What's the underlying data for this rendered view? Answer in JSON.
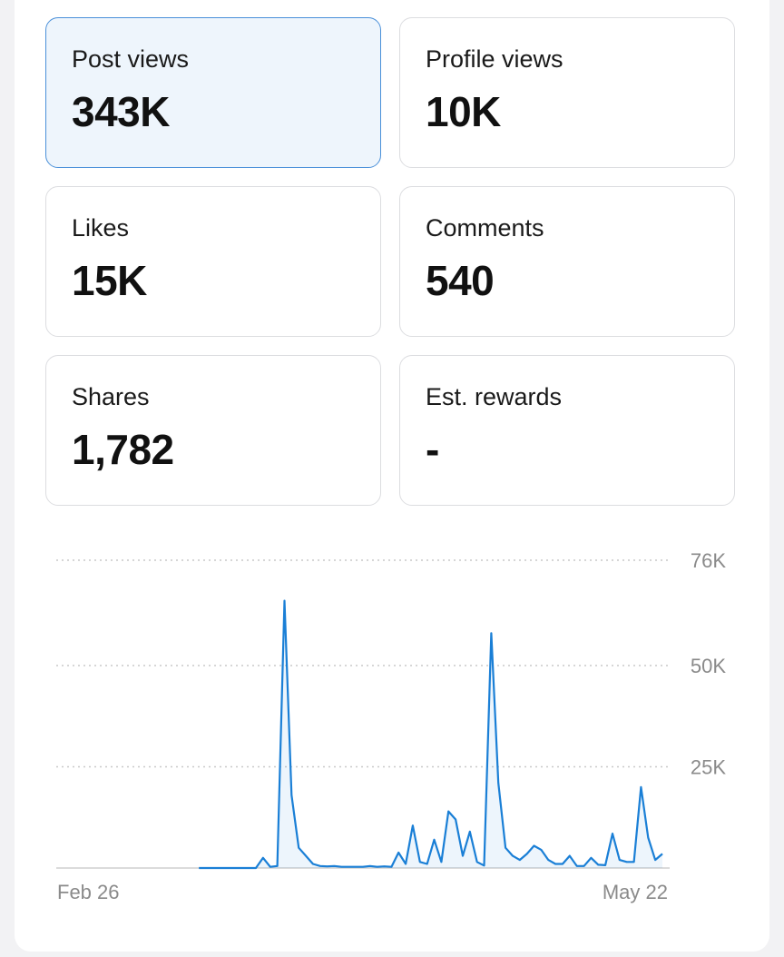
{
  "stats": [
    {
      "label": "Post views",
      "value": "343K",
      "active": true
    },
    {
      "label": "Profile views",
      "value": "10K",
      "active": false
    },
    {
      "label": "Likes",
      "value": "15K",
      "active": false
    },
    {
      "label": "Comments",
      "value": "540",
      "active": false
    },
    {
      "label": "Shares",
      "value": "1,782",
      "active": false
    },
    {
      "label": "Est. rewards",
      "value": "-",
      "active": false
    }
  ],
  "colors": {
    "line": "#1a7fd6",
    "active_border": "#4a90d9",
    "active_bg": "#eef5fc"
  },
  "chart_data": {
    "type": "line",
    "series": [
      {
        "values": [
          null,
          null,
          null,
          null,
          null,
          null,
          null,
          null,
          null,
          null,
          null,
          null,
          null,
          null,
          null,
          null,
          null,
          null,
          null,
          null,
          0,
          0,
          0,
          0,
          0,
          0,
          0,
          0,
          0,
          2500,
          300,
          500,
          66000,
          18000,
          5000,
          3000,
          1000,
          500,
          400,
          500,
          300,
          300,
          300,
          300,
          500,
          300,
          400,
          300,
          3800,
          1000,
          10500,
          1500,
          1000,
          7000,
          1500,
          14000,
          12000,
          3000,
          9000,
          1500,
          600,
          58000,
          21000,
          5000,
          3000,
          2000,
          3500,
          5500,
          4500,
          2000,
          1000,
          1000,
          3000,
          500,
          500,
          2500,
          800,
          700,
          8500,
          2000,
          1500,
          1500,
          20000,
          7500,
          2000,
          3500
        ]
      }
    ],
    "x_tick_labels": [
      "Feb 26",
      "May 22"
    ],
    "y_ticks": [
      25000,
      50000,
      76000
    ],
    "y_tick_labels": [
      "25K",
      "50K",
      "76K"
    ],
    "ylim": [
      0,
      76000
    ],
    "grid": "horizontal dotted"
  }
}
